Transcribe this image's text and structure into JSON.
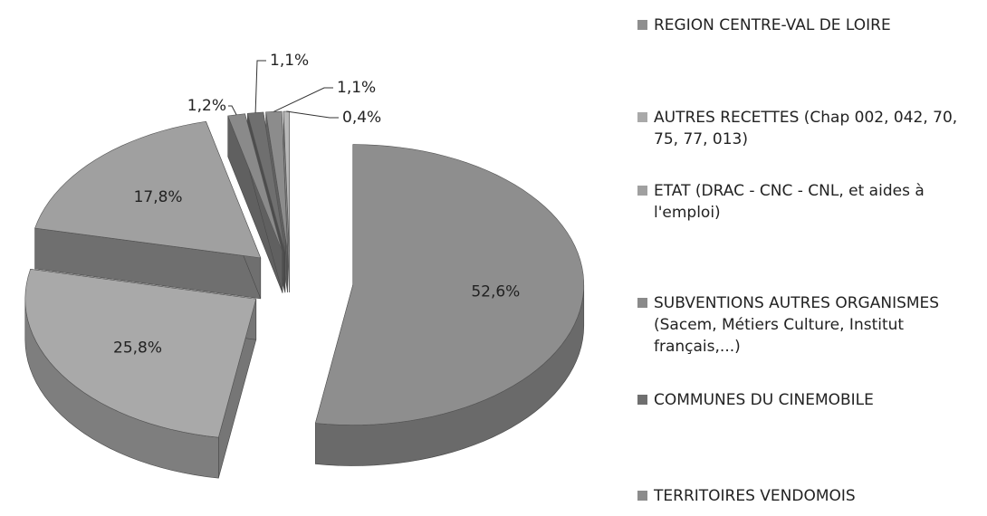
{
  "chart_data": {
    "type": "pie",
    "categories": [
      "REGION CENTRE-VAL DE LOIRE",
      "AUTRES RECETTES (Chap 002, 042, 70, 75, 77, 013)",
      "ETAT (DRAC - CNC - CNL, et aides à l'emploi)",
      "SUBVENTIONS AUTRES ORGANISMES (Sacem, Métiers Culture, Institut français,...)",
      "COMMUNES DU CINEMOBILE",
      "TERRITOIRES VENDOMOIS",
      null
    ],
    "values": [
      52.6,
      25.8,
      17.8,
      1.2,
      1.1,
      1.1,
      0.4
    ],
    "value_labels": [
      "52,6%",
      "25,8%",
      "17,8%",
      "1,2%",
      "1,1%",
      "1,1%",
      "0,4%"
    ],
    "colors": [
      "#8e8e8e",
      "#a9a9a9",
      "#a0a0a0",
      "#8a8a8a",
      "#6f6f6f",
      "#8c8c8c",
      "#b8b8b8"
    ],
    "legend": "right"
  }
}
